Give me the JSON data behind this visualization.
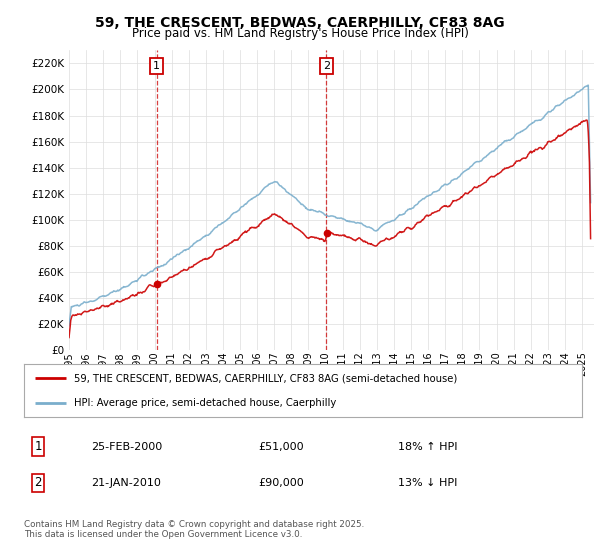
{
  "title_line1": "59, THE CRESCENT, BEDWAS, CAERPHILLY, CF83 8AG",
  "title_line2": "Price paid vs. HM Land Registry's House Price Index (HPI)",
  "legend_label1": "59, THE CRESCENT, BEDWAS, CAERPHILLY, CF83 8AG (semi-detached house)",
  "legend_label2": "HPI: Average price, semi-detached house, Caerphilly",
  "annotation1_date": "25-FEB-2000",
  "annotation1_price": "£51,000",
  "annotation1_hpi": "18% ↑ HPI",
  "annotation2_date": "21-JAN-2010",
  "annotation2_price": "£90,000",
  "annotation2_hpi": "13% ↓ HPI",
  "footnote": "Contains HM Land Registry data © Crown copyright and database right 2025.\nThis data is licensed under the Open Government Licence v3.0.",
  "line_color_red": "#cc0000",
  "line_color_blue": "#7aaecc",
  "background_color": "#ffffff",
  "grid_color": "#dddddd",
  "sale1_year": 2000.13,
  "sale1_price": 51000,
  "sale2_year": 2010.05,
  "sale2_price": 90000
}
